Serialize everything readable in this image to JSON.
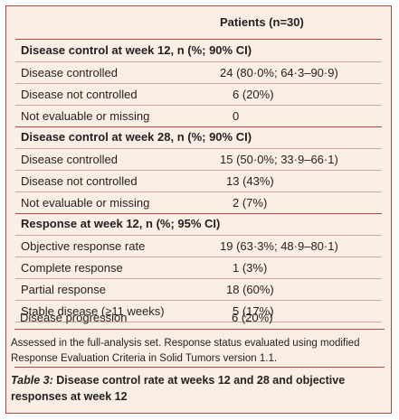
{
  "table": {
    "column_header": "Patients (n=30)",
    "sections": [
      {
        "title": "Disease control at week 12, n (%; 90% CI)",
        "rows": [
          {
            "label": "Disease controlled",
            "value": "24 (80·0%; 64·3–90·9)"
          },
          {
            "label": "Disease not controlled",
            "value": "6 (20%)"
          },
          {
            "label": "Not evaluable or missing",
            "value": "0"
          }
        ]
      },
      {
        "title": "Disease control at week 28, n (%; 90% CI)",
        "rows": [
          {
            "label": "Disease controlled",
            "value": "15 (50·0%; 33·9–66·1)"
          },
          {
            "label": "Disease not controlled",
            "value": "13 (43%)"
          },
          {
            "label": "Not evaluable or missing",
            "value": "2 (7%)"
          }
        ]
      },
      {
        "title": "Response at week 12, n (%; 95% CI)",
        "rows": [
          {
            "label": "Objective response rate",
            "value": "19 (63·3%; 48·9–80·1)"
          },
          {
            "label": "Complete response",
            "value": "1 (3%)"
          },
          {
            "label": "Partial response",
            "value": "18 (60%)"
          },
          {
            "label": "Stable disease (≥11 weeks)",
            "value": "5 (17%)"
          },
          {
            "label": "Disease progression",
            "value": "6 (20%)"
          }
        ]
      }
    ]
  },
  "footnote": "Assessed in the full-analysis set. Response status evaluated using modified Response Evaluation Criteria in Solid Tumors version 1.1.",
  "caption": {
    "label": "Table 3:",
    "text": "Disease control rate at weeks 12 and 28 and objective responses at week 12"
  },
  "colors": {
    "background": "#fbeee4",
    "rule": "#b5453b"
  }
}
